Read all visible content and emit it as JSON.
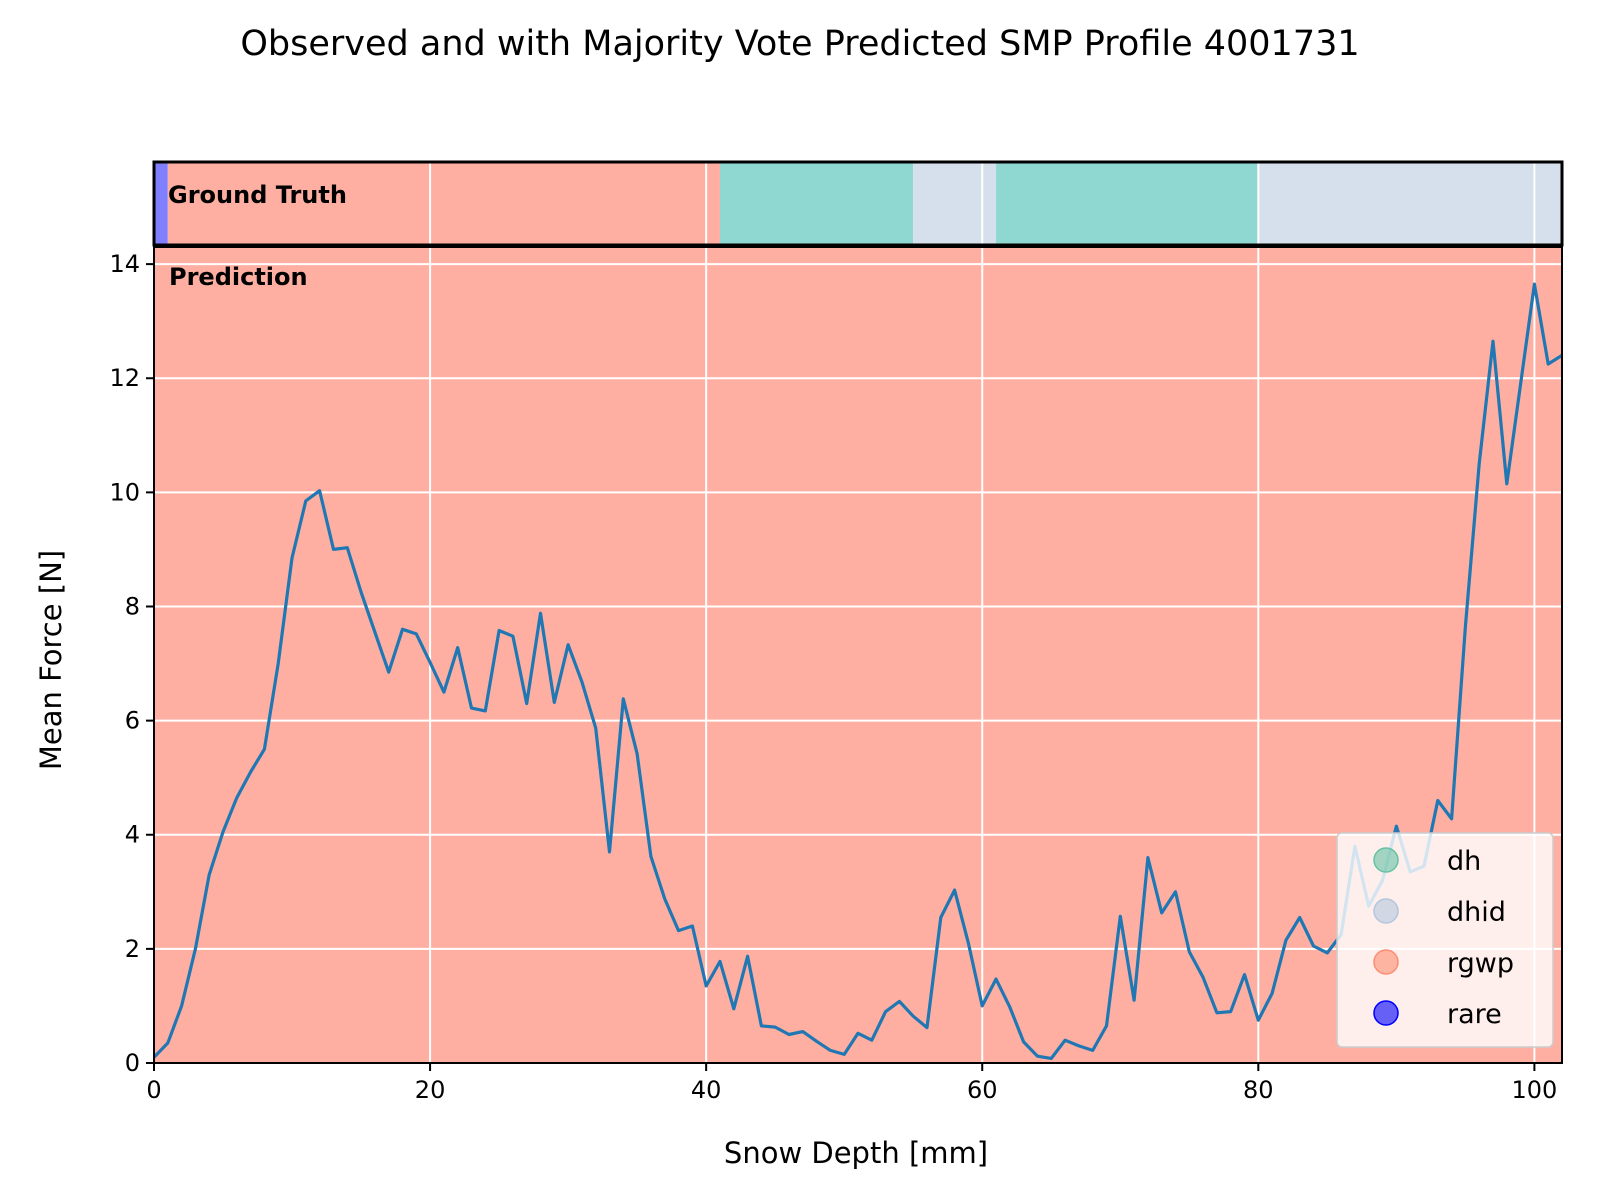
{
  "chart_data": {
    "type": "line",
    "title": "Observed and with Majority Vote Predicted SMP Profile 4001731",
    "xlabel": "Snow Depth [mm]",
    "ylabel": "Mean Force [N]",
    "xlim": [
      0,
      102
    ],
    "ylim": [
      0,
      14.3
    ],
    "xticks": [
      0,
      20,
      40,
      60,
      80,
      100
    ],
    "yticks": [
      0,
      2,
      4,
      6,
      8,
      10,
      12,
      14
    ],
    "grid": true,
    "legend_position": "lower-right",
    "strip_label": "Ground Truth",
    "prediction_label": "Prediction",
    "line_color": "#1f77b4",
    "series": [
      {
        "x": [
          0,
          1,
          2,
          3,
          4,
          5,
          6,
          7,
          8,
          9,
          10,
          11,
          12,
          13,
          14,
          15,
          16,
          17,
          18,
          19,
          20,
          21,
          22,
          23,
          24,
          25,
          26,
          27,
          28,
          29,
          30,
          31,
          32,
          33,
          34,
          35,
          36,
          37,
          38,
          39,
          40,
          41,
          42,
          43,
          44,
          45,
          46,
          47,
          48,
          49,
          50,
          51,
          52,
          53,
          54,
          55,
          56,
          57,
          58,
          59,
          60,
          61,
          62,
          63,
          64,
          65,
          66,
          67,
          68,
          69,
          70,
          71,
          72,
          73,
          74,
          75,
          76,
          77,
          78,
          79,
          80,
          81,
          82,
          83,
          84,
          85,
          86,
          87,
          88,
          89,
          90,
          91,
          92,
          93,
          94,
          95,
          96,
          97,
          98,
          99,
          100,
          101,
          102
        ],
        "y": [
          0.1,
          0.35,
          1.0,
          2.0,
          3.3,
          4.05,
          4.65,
          5.1,
          5.5,
          7.0,
          8.85,
          9.85,
          10.03,
          9.0,
          9.03,
          8.25,
          7.55,
          6.85,
          7.6,
          7.52,
          7.02,
          6.5,
          7.28,
          6.22,
          6.17,
          7.58,
          7.48,
          6.3,
          7.88,
          6.32,
          7.33,
          6.68,
          5.87,
          3.7,
          6.38,
          5.42,
          3.62,
          2.88,
          2.32,
          2.4,
          1.35,
          1.78,
          0.95,
          1.87,
          0.65,
          0.63,
          0.5,
          0.55,
          0.38,
          0.22,
          0.15,
          0.52,
          0.4,
          0.9,
          1.08,
          0.82,
          0.62,
          2.55,
          3.03,
          2.1,
          1.0,
          1.47,
          0.98,
          0.37,
          0.12,
          0.08,
          0.4,
          0.3,
          0.22,
          0.65,
          2.57,
          1.1,
          3.6,
          2.63,
          3.0,
          1.95,
          1.5,
          0.88,
          0.9,
          1.55,
          0.75,
          1.22,
          2.15,
          2.55,
          2.05,
          1.93,
          2.25,
          3.8,
          2.75,
          3.2,
          4.15,
          3.35,
          3.45,
          4.6,
          4.28,
          7.65,
          10.5,
          12.65,
          10.15,
          11.9,
          13.65,
          12.25,
          12.4
        ]
      }
    ],
    "ground_truth_segments": [
      {
        "from": 0,
        "to": 1,
        "class": "rare"
      },
      {
        "from": 1,
        "to": 41,
        "class": "rgwp"
      },
      {
        "from": 41,
        "to": 55,
        "class": "dh"
      },
      {
        "from": 55,
        "to": 61,
        "class": "dhid"
      },
      {
        "from": 61,
        "to": 80,
        "class": "dh"
      },
      {
        "from": 80,
        "to": 102,
        "class": "dhid"
      }
    ],
    "prediction_segments": [
      {
        "from": 0,
        "to": 102,
        "class": "rgwp"
      }
    ],
    "legend": [
      {
        "label": "dh",
        "color": "#66c2a5"
      },
      {
        "label": "dhid",
        "color": "#b3c6de"
      },
      {
        "label": "rgwp",
        "color": "#fc8d72"
      },
      {
        "label": "rare",
        "color": "#0000ff"
      }
    ],
    "class_colors": {
      "dh": "#8fd8d2",
      "dhid": "#d6e0ec",
      "rgwp": "#feafa2",
      "rare": "#7f7fff"
    }
  }
}
